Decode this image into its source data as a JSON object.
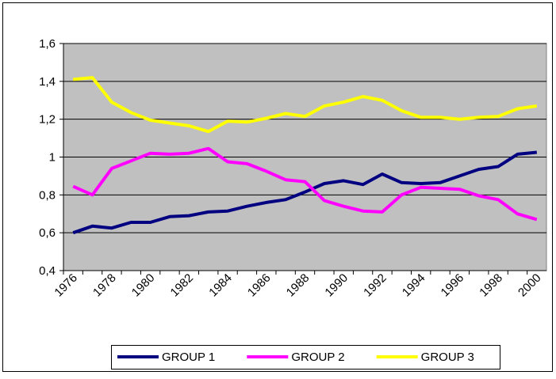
{
  "chart_data": {
    "type": "line",
    "categories": [
      "1976",
      null,
      "1978",
      null,
      "1980",
      null,
      "1982",
      null,
      "1984",
      null,
      "1986",
      null,
      "1988",
      null,
      "1990",
      null,
      "1992",
      null,
      "1994",
      null,
      "1996",
      null,
      "1998",
      null,
      "2000"
    ],
    "series": [
      {
        "name": "GROUP 1",
        "color": "#000080",
        "values": [
          0.6,
          0.635,
          0.625,
          0.655,
          0.655,
          0.685,
          0.69,
          0.71,
          0.715,
          0.74,
          0.76,
          0.775,
          0.815,
          0.86,
          0.875,
          0.855,
          0.91,
          0.865,
          0.86,
          0.865,
          0.9,
          0.935,
          0.95,
          1.015,
          1.025
        ]
      },
      {
        "name": "GROUP 2",
        "color": "#ff00ff",
        "values": [
          0.845,
          0.8,
          0.94,
          0.98,
          1.02,
          1.015,
          1.02,
          1.045,
          0.975,
          0.965,
          0.925,
          0.88,
          0.87,
          0.77,
          0.74,
          0.715,
          0.71,
          0.8,
          0.84,
          0.835,
          0.83,
          0.795,
          0.775,
          0.7,
          0.67
        ]
      },
      {
        "name": "GROUP 3",
        "color": "#ffff00",
        "values": [
          1.41,
          1.42,
          1.29,
          1.235,
          1.195,
          1.18,
          1.165,
          1.135,
          1.19,
          1.185,
          1.205,
          1.23,
          1.215,
          1.27,
          1.29,
          1.32,
          1.3,
          1.245,
          1.21,
          1.21,
          1.2,
          1.21,
          1.215,
          1.255,
          1.27
        ]
      }
    ],
    "ylim": [
      0.4,
      1.6
    ],
    "yticks": [
      {
        "value": 0.4,
        "label": "0,4"
      },
      {
        "value": 0.6,
        "label": "0,6"
      },
      {
        "value": 0.8,
        "label": "0,8"
      },
      1,
      {
        "value": 1.2,
        "label": "1,2"
      },
      {
        "value": 1.4,
        "label": "1,4"
      },
      {
        "value": 1.6,
        "label": "1,6"
      }
    ],
    "grid": true,
    "legend": "bottom",
    "plot_background": "#c0c0c0"
  }
}
